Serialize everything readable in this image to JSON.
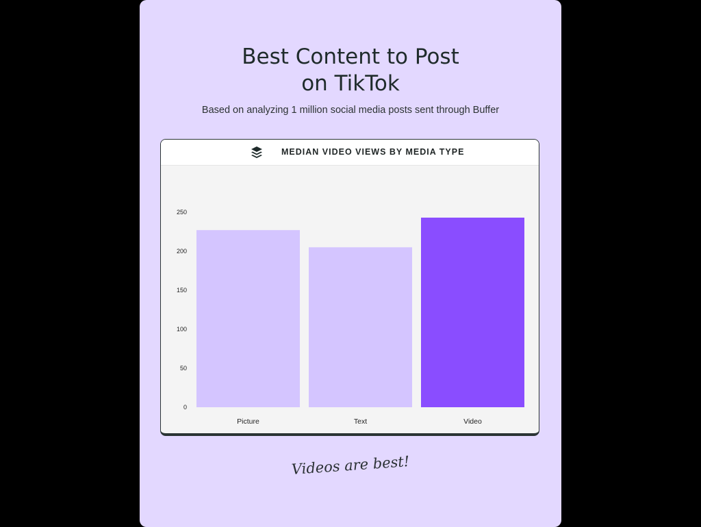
{
  "header": {
    "title_line1": "Best Content to Post",
    "title_line2": "on TikTok",
    "subtitle": "Based on analyzing 1 million social media posts sent through Buffer"
  },
  "footer": {
    "caption": "Videos are best!"
  },
  "colors": {
    "background": "#e3d8ff",
    "bar_light": "#d4c5ff",
    "bar_highlight": "#8a4dff"
  },
  "chart_data": {
    "type": "bar",
    "title": "MEDIAN VIDEO VIEWS BY MEDIA TYPE",
    "categories": [
      "Picture",
      "Text",
      "Video"
    ],
    "values": [
      227,
      205,
      243
    ],
    "highlight": "Video",
    "ylim": [
      0,
      250
    ],
    "yticks": [
      0,
      50,
      100,
      150,
      200,
      250
    ],
    "xlabel": "",
    "ylabel": "",
    "grid": false,
    "legend": "none"
  }
}
